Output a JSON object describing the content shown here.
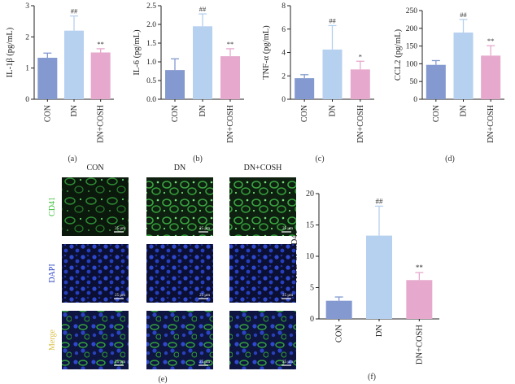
{
  "colors": {
    "con": "#8399cf",
    "dn": "#b6d0ef",
    "cosh": "#e6a9cd",
    "sig": "#333333",
    "cd41": "#3fbf3f",
    "dapi": "#2d44c6",
    "merge": "#d9c14a"
  },
  "chart_data": [
    {
      "id": "a",
      "type": "bar",
      "panel_label": "(a)",
      "ylabel": "IL-1β (pg/mL)",
      "ylim": [
        0,
        3
      ],
      "yticks": [
        0,
        1,
        2,
        3
      ],
      "categories": [
        "CON",
        "DN",
        "DN+COSH"
      ],
      "values": [
        1.33,
        2.2,
        1.5
      ],
      "errors": [
        0.15,
        0.47,
        0.12
      ],
      "sig": [
        "",
        "##",
        "**"
      ]
    },
    {
      "id": "b",
      "type": "bar",
      "panel_label": "(b)",
      "ylabel": "IL-6 (pg/mL)",
      "ylim": [
        0,
        2.5
      ],
      "yticks": [
        0.0,
        0.5,
        1.0,
        1.5,
        2.0,
        2.5
      ],
      "categories": [
        "CON",
        "DN",
        "DN+COSH"
      ],
      "values": [
        0.78,
        1.95,
        1.15
      ],
      "errors": [
        0.3,
        0.33,
        0.2
      ],
      "sig": [
        "",
        "##",
        "**"
      ]
    },
    {
      "id": "c",
      "type": "bar",
      "panel_label": "(c)",
      "ylabel": "TNF-α (pg/mL)",
      "ylim": [
        0,
        8
      ],
      "yticks": [
        0,
        2,
        4,
        6,
        8
      ],
      "categories": [
        "CON",
        "DN",
        "DN+COSH"
      ],
      "values": [
        1.8,
        4.25,
        2.55
      ],
      "errors": [
        0.3,
        2.05,
        0.7
      ],
      "sig": [
        "",
        "##",
        "*"
      ]
    },
    {
      "id": "d",
      "type": "bar",
      "panel_label": "(d)",
      "ylabel": "CCL2 (pg/mL)",
      "ylim": [
        0,
        250
      ],
      "yticks": [
        0,
        50,
        100,
        150,
        200,
        250
      ],
      "categories": [
        "CON",
        "DN",
        "DN+COSH"
      ],
      "values": [
        97,
        188,
        123
      ],
      "errors": [
        12,
        37,
        28
      ],
      "sig": [
        "",
        "##",
        "**"
      ]
    },
    {
      "id": "f",
      "type": "bar",
      "panel_label": "(f)",
      "ylabel": "AOD of CD41",
      "ylim": [
        0,
        20
      ],
      "yticks": [
        0,
        5,
        10,
        15,
        20
      ],
      "categories": [
        "CON",
        "DN",
        "DN+COSH"
      ],
      "values": [
        2.9,
        13.3,
        6.2
      ],
      "errors": [
        0.6,
        4.7,
        1.2
      ],
      "sig": [
        "",
        "##",
        "**"
      ]
    }
  ],
  "micro": {
    "panel_label": "(e)",
    "columns": [
      "CON",
      "DN",
      "DN+COSH"
    ],
    "rows": [
      {
        "key": "cd41",
        "label": "CD41"
      },
      {
        "key": "dapi",
        "label": "DAPI"
      },
      {
        "key": "merge",
        "label": "Merge"
      }
    ],
    "scale_label": "25 μm"
  }
}
